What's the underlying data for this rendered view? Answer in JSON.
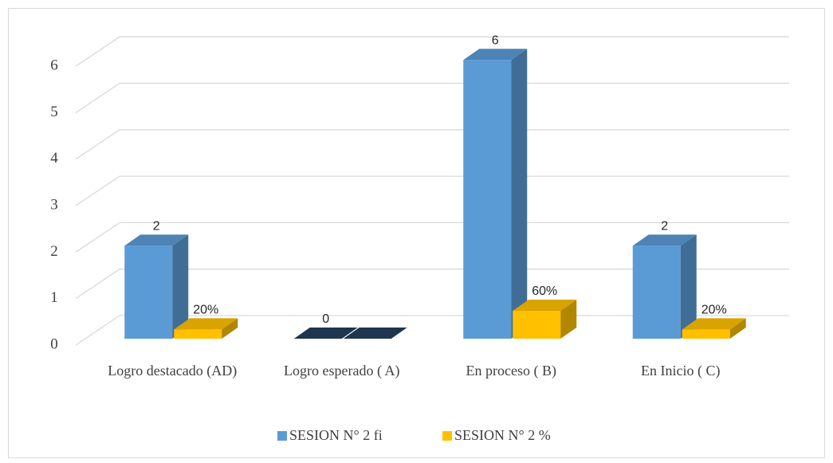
{
  "chart_data": {
    "type": "bar3d",
    "categories": [
      "Logro destacado (AD)",
      "Logro esperado ( A)",
      "En proceso ( B)",
      "En Inicio ( C)"
    ],
    "series": [
      {
        "name": "SESION N° 2 fi",
        "color": "#5b9bd5",
        "values": [
          2,
          0,
          6,
          2
        ]
      },
      {
        "name": "SESION N° 2 %",
        "color": "#ffc000",
        "values": [
          0.2,
          0,
          0.6,
          0.2
        ],
        "value_labels": [
          "20%",
          null,
          "60%",
          "20%"
        ]
      }
    ],
    "ylim": [
      0,
      6
    ],
    "yticks": [
      0,
      1,
      2,
      3,
      4,
      5,
      6
    ],
    "grid": true,
    "legend": "bottom"
  }
}
